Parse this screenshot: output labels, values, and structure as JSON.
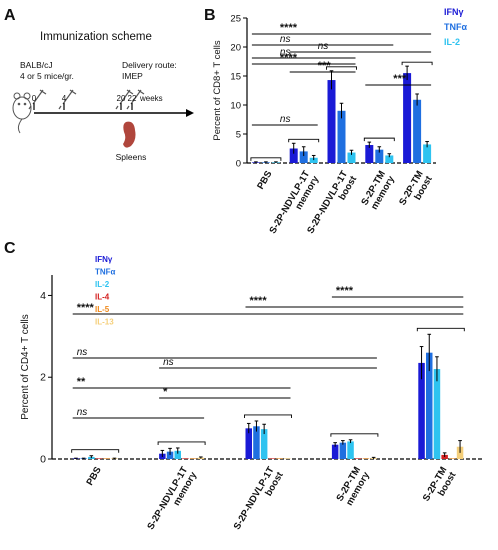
{
  "panels": {
    "a": {
      "label": "A",
      "title": "Immunization scheme",
      "mouse_text": [
        "BALB/cJ",
        "4 or 5 mice/gr."
      ],
      "route_text": [
        "Delivery route:",
        "IMEP"
      ],
      "timeline_ticks": [
        "0",
        "4",
        "20",
        "22"
      ],
      "timeline_unit": "weeks",
      "organ_label": "Spleens",
      "colors": {
        "line": "#000000",
        "organ": "#b0463c",
        "syringe": "#555555"
      }
    },
    "b": {
      "label": "B"
    },
    "c": {
      "label": "C"
    }
  },
  "chart_data": [
    {
      "type": "bar",
      "panel": "B",
      "ylabel": "Percent of CD8+ T cells",
      "ylim": [
        0,
        25
      ],
      "yticks": [
        "0",
        "5",
        "10",
        "15",
        "20",
        "25"
      ],
      "categories": [
        "PBS",
        "S-2P-NDVLP-1T memory",
        "S-2P-NDVLP-1T boost",
        "S-2P-TM memory",
        "S-2P-TM boost"
      ],
      "category_labels": [
        [
          "PBS"
        ],
        [
          "S-2P-NDVLP-1T",
          "memory"
        ],
        [
          "S-2P-NDVLP-1T",
          "boost"
        ],
        [
          "S-2P-TM",
          "memory"
        ],
        [
          "S-2P-TM",
          "boost"
        ]
      ],
      "series": [
        {
          "name": "IFNγ",
          "color": "#1a1ad6",
          "values": [
            0.1,
            2.5,
            14.3,
            3.1,
            15.5
          ],
          "errors": [
            0.1,
            0.9,
            1.6,
            0.5,
            1.2
          ]
        },
        {
          "name": "TNFα",
          "color": "#1f6fe0",
          "values": [
            0.1,
            2.0,
            9.0,
            2.3,
            10.9
          ],
          "errors": [
            0.1,
            0.8,
            1.3,
            0.5,
            1.0
          ]
        },
        {
          "name": "IL-2",
          "color": "#2ec3f0",
          "values": [
            0.1,
            0.9,
            1.8,
            1.3,
            3.2
          ],
          "errors": [
            0.1,
            0.4,
            0.4,
            0.3,
            0.5
          ]
        }
      ],
      "significance": [
        {
          "label": "****",
          "from": 0,
          "to": 4
        },
        {
          "label": "ns",
          "from": 0,
          "to": 3
        },
        {
          "label": "ns",
          "from": 1,
          "to": 4
        },
        {
          "label": "ns",
          "from": 0,
          "to": 2
        },
        {
          "label": "****",
          "from": 0,
          "to": 2
        },
        {
          "label": "***",
          "from": 1,
          "to": 2
        },
        {
          "label": "***",
          "from": 3,
          "to": 4
        },
        {
          "label": "ns",
          "from": 0,
          "to": 1
        }
      ]
    },
    {
      "type": "bar",
      "panel": "C",
      "ylabel": "Percent of CD4+ T cells",
      "ylim": [
        0,
        4.5
      ],
      "yticks": [
        "0",
        "2",
        "4"
      ],
      "categories": [
        "PBS",
        "S-2P-NDVLP-1T memory",
        "S-2P-NDVLP-1T boost",
        "S-2P-TM memory",
        "S-2P-TM boost"
      ],
      "category_labels": [
        [
          "PBS"
        ],
        [
          "S-2P-NDVLP-1T",
          "memory"
        ],
        [
          "S-2P-NDVLP-1T",
          "boost"
        ],
        [
          "S-2P-TM",
          "memory"
        ],
        [
          "S-2P-TM",
          "boost"
        ]
      ],
      "series": [
        {
          "name": "IFNγ",
          "color": "#1a1ad6",
          "values": [
            0.01,
            0.13,
            0.75,
            0.35,
            2.35
          ],
          "errors": [
            0.01,
            0.08,
            0.12,
            0.05,
            0.4
          ]
        },
        {
          "name": "TNFα",
          "color": "#1f6fe0",
          "values": [
            0.01,
            0.18,
            0.8,
            0.4,
            2.6
          ],
          "errors": [
            0.01,
            0.08,
            0.13,
            0.05,
            0.45
          ]
        },
        {
          "name": "IL-2",
          "color": "#2ec3f0",
          "values": [
            0.05,
            0.2,
            0.73,
            0.43,
            2.2
          ],
          "errors": [
            0.03,
            0.07,
            0.12,
            0.04,
            0.3
          ]
        },
        {
          "name": "IL-4",
          "color": "#d42020",
          "values": [
            0.0,
            0.0,
            0.0,
            0.0,
            0.1
          ],
          "errors": [
            0.0,
            0.0,
            0.0,
            0.0,
            0.05
          ]
        },
        {
          "name": "IL-5",
          "color": "#f08a1c",
          "values": [
            0.0,
            0.0,
            0.0,
            0.0,
            0.0
          ],
          "errors": [
            0.0,
            0.0,
            0.0,
            0.0,
            0.0
          ]
        },
        {
          "name": "IL-13",
          "color": "#f5cf7a",
          "values": [
            0.01,
            0.03,
            0.0,
            0.02,
            0.3
          ],
          "errors": [
            0.01,
            0.02,
            0.0,
            0.02,
            0.15
          ]
        }
      ],
      "significance": [
        {
          "label": "****",
          "from": 0,
          "to": 4
        },
        {
          "label": "****",
          "from": 2,
          "to": 4
        },
        {
          "label": "****",
          "from": 3,
          "to": 4
        },
        {
          "label": "ns",
          "from": 0,
          "to": 3
        },
        {
          "label": "ns",
          "from": 1,
          "to": 3
        },
        {
          "label": "**",
          "from": 0,
          "to": 2
        },
        {
          "label": "*",
          "from": 1,
          "to": 2
        },
        {
          "label": "ns",
          "from": 0,
          "to": 1
        }
      ]
    }
  ]
}
